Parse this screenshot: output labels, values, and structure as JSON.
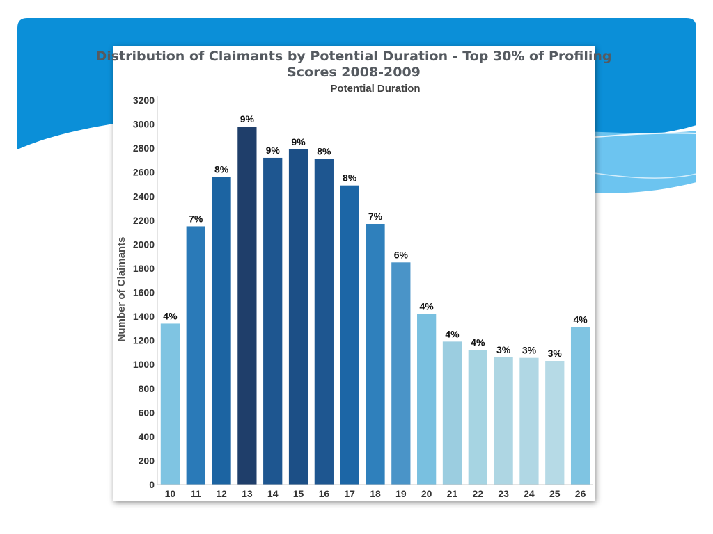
{
  "colors": {
    "banner_dark": "#0b8fd8",
    "banner_light": "#6cc4f0",
    "axis": "#c8c8c8"
  },
  "chart_data": {
    "type": "bar",
    "title_lines": [
      "Distribution of Claimants by Potential Duration - Top 30% of Profiling",
      "Scores 2008-2009"
    ],
    "subtitle": "Potential Duration",
    "xlabel": "",
    "ylabel": "Number of Claimants",
    "ylim": [
      0,
      3200
    ],
    "yticks": [
      0,
      200,
      400,
      600,
      800,
      1000,
      1200,
      1400,
      1600,
      1800,
      2000,
      2200,
      2400,
      2600,
      2800,
      3000,
      3200
    ],
    "grid": false,
    "categories": [
      "10",
      "11",
      "12",
      "13",
      "14",
      "15",
      "16",
      "17",
      "18",
      "19",
      "20",
      "21",
      "22",
      "23",
      "24",
      "25",
      "26"
    ],
    "values": [
      1340,
      2150,
      2560,
      2980,
      2720,
      2790,
      2710,
      2490,
      2170,
      1850,
      1420,
      1190,
      1120,
      1060,
      1055,
      1030,
      1310
    ],
    "labels": [
      "4%",
      "7%",
      "8%",
      "9%",
      "9%",
      "9%",
      "8%",
      "8%",
      "7%",
      "6%",
      "4%",
      "4%",
      "4%",
      "3%",
      "3%",
      "3%",
      "4%"
    ],
    "bar_colors": [
      "#7fc4e2",
      "#2a7ab8",
      "#1c64a2",
      "#1f3e6a",
      "#1e5690",
      "#1c4f86",
      "#1e5690",
      "#1c66a6",
      "#2f80bc",
      "#4a94c8",
      "#79c0e0",
      "#9bcde0",
      "#a6d4e2",
      "#aed6e3",
      "#b0d7e4",
      "#b6dae6",
      "#7fc4e2"
    ]
  }
}
